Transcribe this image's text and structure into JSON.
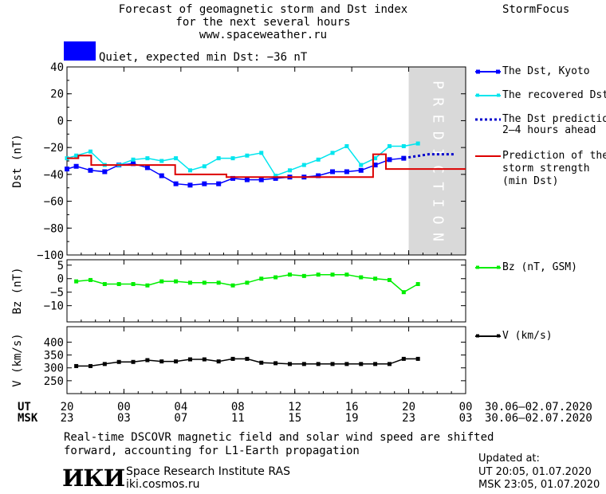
{
  "header": {
    "title_line1": "Forecast of geomagnetic storm and Dst index",
    "title_line2": "for the next several hours",
    "url": "www.spaceweather.ru",
    "brand": "StormFocus",
    "status_text": "Quiet, expected min Dst: −36 nT",
    "status_color": "#0000ff"
  },
  "prediction_label": "PREDICTION",
  "colors": {
    "dst_kyoto": "#0000ff",
    "recovered": "#00e5ee",
    "prediction": "#0000cc",
    "strength": "#dd0000",
    "bz": "#00ee00",
    "v": "#000000",
    "shade": "#d9d9d9"
  },
  "legend": {
    "dst": [
      {
        "key": "kyoto",
        "lines": [
          "The Dst, Kyoto"
        ]
      },
      {
        "key": "recovered",
        "lines": [
          "The recovered Dst"
        ]
      },
      {
        "key": "pred",
        "lines": [
          "The Dst prediction",
          "2–4 hours ahead"
        ]
      },
      {
        "key": "strength",
        "lines": [
          "Prediction of the",
          "storm strength",
          "(min Dst)"
        ]
      }
    ],
    "bz": "Bz (nT, GSM)",
    "v": "V (km/s)"
  },
  "time_axis": {
    "ut_label": "UT",
    "msk_label": "MSK",
    "ut_ticks": [
      "20",
      "00",
      "04",
      "08",
      "12",
      "16",
      "20",
      "00"
    ],
    "msk_ticks": [
      "23",
      "03",
      "07",
      "11",
      "15",
      "19",
      "23",
      "03"
    ],
    "date_range": "30.06–02.07.2020"
  },
  "footer": {
    "note_line1": "Real-time DSCOVR magnetic field and solar wind speed are shifted",
    "note_line2": "forward, accounting for L1-Earth propagation",
    "logo_text": "ИКИ",
    "institute": "Space Research Institute RAS",
    "site": "iki.cosmos.ru",
    "updated_label": "Updated at:",
    "updated_ut": "UT  20:05, 01.07.2020",
    "updated_msk": "MSK 23:05, 01.07.2020"
  },
  "chart_data": [
    {
      "type": "line",
      "ylabel": "Dst (nT)",
      "ylim": [
        -100,
        40
      ],
      "yticks": [
        40,
        20,
        0,
        -20,
        -40,
        -60,
        -80,
        -100
      ],
      "xlim": [
        0,
        28
      ],
      "prediction_region": [
        24,
        28
      ],
      "series": [
        {
          "key": "kyoto",
          "name": "The Dst, Kyoto",
          "x": [
            0,
            0.65,
            1.65,
            2.65,
            3.65,
            4.65,
            5.65,
            6.65,
            7.65,
            8.65,
            9.65,
            10.65,
            11.65,
            12.65,
            13.65,
            14.65,
            15.65,
            16.65,
            17.65,
            18.65,
            19.65,
            20.65,
            21.65,
            22.65,
            23.65
          ],
          "y": [
            -36,
            -34,
            -37,
            -38,
            -33,
            -32,
            -35,
            -41,
            -47,
            -48,
            -47,
            -47,
            -43,
            -44,
            -44,
            -43,
            -42,
            -42,
            -41,
            -38,
            -38,
            -37,
            -33,
            -29,
            -28
          ]
        },
        {
          "key": "recovered",
          "name": "The recovered Dst",
          "x": [
            0,
            0.65,
            1.65,
            2.65,
            3.65,
            4.65,
            5.65,
            6.65,
            7.65,
            8.65,
            9.65,
            10.65,
            11.65,
            12.65,
            13.65,
            14.65,
            15.65,
            16.65,
            17.65,
            18.65,
            19.65,
            20.65,
            21.65,
            22.65,
            23.65,
            24.65
          ],
          "y": [
            -28,
            -26,
            -23,
            -33,
            -33,
            -29,
            -28,
            -30,
            -28,
            -37,
            -34,
            -28,
            -28,
            -26,
            -24,
            -41,
            -37,
            -33,
            -29,
            -24,
            -19,
            -33,
            -28,
            -19,
            -19,
            -17
          ]
        },
        {
          "key": "pred",
          "name": "The Dst prediction 2–4 hours ahead",
          "x": [
            23.65,
            24.2,
            24.8,
            25.4,
            26.0,
            26.6,
            27.2
          ],
          "y": [
            -28,
            -27,
            -26,
            -25,
            -25,
            -25,
            -25
          ]
        },
        {
          "key": "strength",
          "name": "Prediction of the storm strength (min Dst)",
          "x": [
            0,
            0.8,
            1.7,
            2.9,
            3.7,
            4.8,
            5.7,
            6.7,
            7.6,
            8.5,
            9.4,
            10.3,
            11.2,
            12.1,
            13,
            13.9,
            14.8,
            15.7,
            16.6,
            17.5,
            18.5,
            19.3,
            20.3,
            21.5,
            22.4,
            23.2,
            24,
            28
          ],
          "y": [
            -28,
            -26,
            -33,
            -33,
            -33,
            -33,
            -33,
            -33,
            -40,
            -40,
            -40,
            -40,
            -42,
            -42,
            -42,
            -42,
            -42,
            -42,
            -42,
            -42,
            -42,
            -42,
            -42,
            -25,
            -36,
            -36,
            -36,
            -36
          ],
          "step": true
        }
      ]
    },
    {
      "type": "line",
      "ylabel": "Bz (nT)",
      "ylim": [
        -16,
        7
      ],
      "yticks": [
        5,
        0,
        -5,
        -10
      ],
      "xlim": [
        0,
        28
      ],
      "series": [
        {
          "key": "bz",
          "name": "Bz (nT, GSM)",
          "x": [
            0.65,
            1.65,
            2.65,
            3.65,
            4.65,
            5.65,
            6.65,
            7.65,
            8.65,
            9.65,
            10.65,
            11.65,
            12.65,
            13.65,
            14.65,
            15.65,
            16.65,
            17.65,
            18.65,
            19.65,
            20.65,
            21.65,
            22.65,
            23.65,
            24.65
          ],
          "y": [
            -1,
            -0.5,
            -2,
            -2,
            -2,
            -2.5,
            -1,
            -1,
            -1.5,
            -1.5,
            -1.5,
            -2.5,
            -1.5,
            0,
            0.5,
            1.5,
            1,
            1.5,
            1.5,
            1.5,
            0.5,
            0,
            -0.5,
            -5,
            -2
          ]
        }
      ]
    },
    {
      "type": "line",
      "ylabel": "V (km/s)",
      "ylim": [
        200,
        460
      ],
      "yticks": [
        400,
        350,
        300,
        250
      ],
      "xlim": [
        0,
        28
      ],
      "series": [
        {
          "key": "v",
          "name": "V (km/s)",
          "x": [
            0.65,
            1.65,
            2.65,
            3.65,
            4.65,
            5.65,
            6.65,
            7.65,
            8.65,
            9.65,
            10.65,
            11.65,
            12.65,
            13.65,
            14.65,
            15.65,
            16.65,
            17.65,
            18.65,
            19.65,
            20.65,
            21.65,
            22.65,
            23.65,
            24.65
          ],
          "y": [
            307,
            307,
            315,
            323,
            323,
            330,
            325,
            325,
            333,
            333,
            325,
            335,
            335,
            320,
            318,
            315,
            315,
            315,
            315,
            315,
            315,
            315,
            315,
            335,
            335
          ]
        }
      ]
    }
  ]
}
